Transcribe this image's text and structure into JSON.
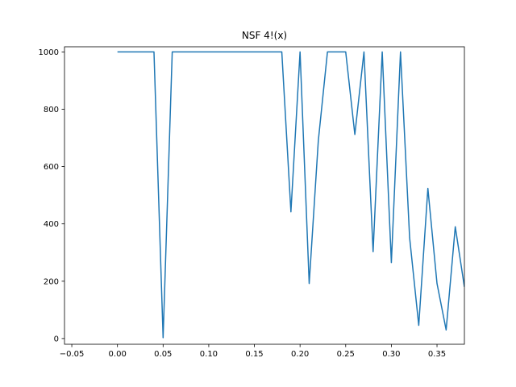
{
  "chart_data": {
    "type": "line",
    "title": "NSF 4!(x)",
    "xlabel": "",
    "ylabel": "",
    "xlim": [
      -0.058,
      0.38
    ],
    "ylim": [
      -20,
      1018
    ],
    "grid": false,
    "legend": "none",
    "x_ticks": [
      {
        "value": -0.05,
        "label": "−0.05"
      },
      {
        "value": 0.0,
        "label": "0.00"
      },
      {
        "value": 0.05,
        "label": "0.05"
      },
      {
        "value": 0.1,
        "label": "0.10"
      },
      {
        "value": 0.15,
        "label": "0.15"
      },
      {
        "value": 0.2,
        "label": "0.20"
      },
      {
        "value": 0.25,
        "label": "0.25"
      },
      {
        "value": 0.3,
        "label": "0.30"
      },
      {
        "value": 0.35,
        "label": "0.35"
      }
    ],
    "y_ticks": [
      {
        "value": 0,
        "label": "0"
      },
      {
        "value": 200,
        "label": "200"
      },
      {
        "value": 400,
        "label": "400"
      },
      {
        "value": 600,
        "label": "600"
      },
      {
        "value": 800,
        "label": "800"
      },
      {
        "value": 1000,
        "label": "1000"
      }
    ],
    "series": [
      {
        "color": "#1f77b4",
        "x": [
          0.0,
          0.01,
          0.02,
          0.03,
          0.04,
          0.05,
          0.06,
          0.07,
          0.08,
          0.09,
          0.1,
          0.11,
          0.12,
          0.13,
          0.14,
          0.15,
          0.16,
          0.17,
          0.18,
          0.19,
          0.2,
          0.21,
          0.22,
          0.23,
          0.24,
          0.25,
          0.26,
          0.27,
          0.28,
          0.29,
          0.3,
          0.31,
          0.32,
          0.33,
          0.34,
          0.35,
          0.36,
          0.37,
          0.38
        ],
        "y": [
          1000,
          1000,
          1000,
          1000,
          1000,
          3,
          1000,
          1000,
          1000,
          1000,
          1000,
          1000,
          1000,
          1000,
          1000,
          1000,
          1000,
          1000,
          1000,
          442,
          1000,
          192,
          690,
          1000,
          1000,
          1000,
          712,
          1000,
          303,
          1000,
          265,
          1000,
          352,
          46,
          524,
          192,
          30,
          390,
          180
        ]
      }
    ]
  }
}
